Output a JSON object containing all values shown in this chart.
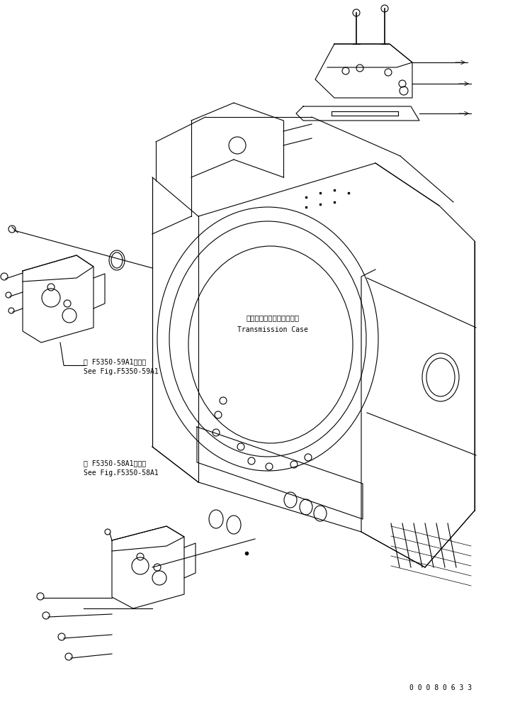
{
  "bg_color": "#ffffff",
  "line_color": "#000000",
  "label_59": "第 F5350-59A1図参照\nSee Fig.F5350-59A1",
  "label_58": "第 F5350-58A1図参照\nSee Fig.F5350-58A1",
  "label_tc_jp": "トランスミッションケース",
  "label_tc_en": "Transmission Case",
  "part_number": "0 0 0 8 0 6 3 3",
  "figsize": [
    7.27,
    9.97
  ],
  "dpi": 100
}
